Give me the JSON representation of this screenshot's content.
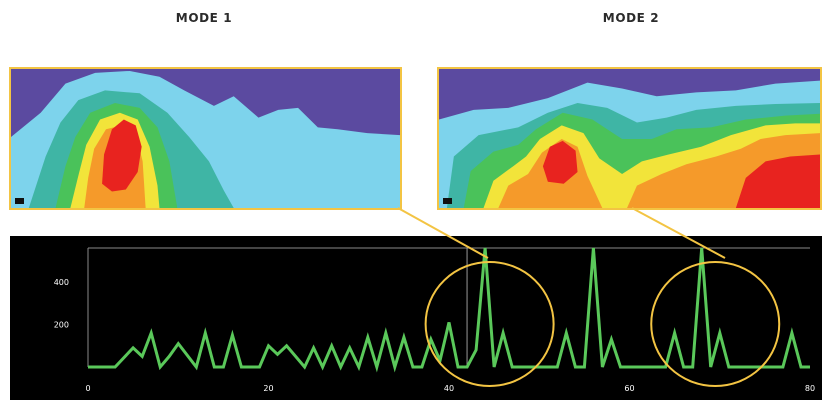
{
  "panels": {
    "mode1": {
      "title": "MODE 1"
    },
    "mode2": {
      "title": "MODE 2"
    }
  },
  "colors": {
    "frame": "#f3c443",
    "line": "#5ac85a",
    "panel_background": "#000000",
    "heatmap_scale": [
      "#5b4aa0",
      "#7dd3ec",
      "#3fb5a5",
      "#4ac25a",
      "#f2e43a",
      "#f59a2a",
      "#e8231f"
    ]
  },
  "chart_data": {
    "type": "line",
    "xlim": [
      0,
      80
    ],
    "ylim": [
      0,
      560
    ],
    "x_ticks": [
      "0",
      "20",
      "40",
      "60",
      "80"
    ],
    "y_ticks": [
      "200",
      "400"
    ],
    "grid": false,
    "cursor_x": 42,
    "highlight_circles_x": [
      44.5,
      69.5
    ],
    "series": [
      {
        "x": [
          0,
          3,
          5,
          6,
          7,
          8,
          9,
          10,
          12,
          13,
          14,
          15,
          16,
          17,
          18,
          19,
          20,
          21,
          22,
          24,
          25,
          26,
          27,
          28,
          29,
          30,
          31,
          32,
          33,
          34,
          35,
          36,
          37,
          38,
          39,
          40,
          41,
          42,
          43,
          44,
          45,
          46,
          47,
          48,
          49,
          50,
          52,
          53,
          54,
          55,
          56,
          57,
          58,
          59,
          60,
          61,
          62,
          63,
          64,
          65,
          66,
          67,
          68,
          69,
          70,
          71,
          72,
          73,
          74,
          75,
          76,
          77,
          78,
          79,
          80
        ],
        "y": [
          0,
          0,
          90,
          50,
          160,
          0,
          50,
          110,
          0,
          160,
          0,
          0,
          150,
          0,
          0,
          0,
          100,
          60,
          100,
          0,
          90,
          0,
          100,
          0,
          90,
          0,
          140,
          0,
          160,
          0,
          140,
          0,
          0,
          130,
          30,
          210,
          0,
          0,
          80,
          560,
          0,
          160,
          0,
          0,
          0,
          0,
          0,
          160,
          0,
          0,
          560,
          0,
          130,
          0,
          0,
          0,
          0,
          0,
          0,
          160,
          0,
          0,
          560,
          0,
          160,
          0,
          0,
          0,
          0,
          0,
          0,
          0,
          160,
          0,
          0
        ]
      }
    ]
  }
}
